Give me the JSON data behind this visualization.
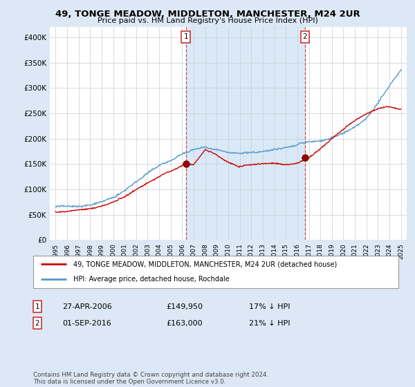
{
  "title": "49, TONGE MEADOW, MIDDLETON, MANCHESTER, M24 2UR",
  "subtitle": "Price paid vs. HM Land Registry's House Price Index (HPI)",
  "ylim": [
    0,
    420000
  ],
  "yticks": [
    0,
    50000,
    100000,
    150000,
    200000,
    250000,
    300000,
    350000,
    400000
  ],
  "ytick_labels": [
    "£0",
    "£50K",
    "£100K",
    "£150K",
    "£200K",
    "£250K",
    "£300K",
    "£350K",
    "£400K"
  ],
  "background_color": "#dce8f5",
  "plot_background": "#ffffff",
  "hpi_color": "#5599cc",
  "sale_color": "#cc0000",
  "vline_color": "#cc3333",
  "shade_color": "#d0e4f5",
  "marker1_x": 11.33,
  "marker1_year": "27-APR-2006",
  "marker1_price": 149950,
  "marker1_pct": "17% ↓ HPI",
  "marker2_x": 21.67,
  "marker2_year": "01-SEP-2016",
  "marker2_price": 163000,
  "marker2_pct": "21% ↓ HPI",
  "legend_line1": "49, TONGE MEADOW, MIDDLETON, MANCHESTER, M24 2UR (detached house)",
  "legend_line2": "HPI: Average price, detached house, Rochdale",
  "footnote": "Contains HM Land Registry data © Crown copyright and database right 2024.\nThis data is licensed under the Open Government Licence v3.0.",
  "x_start_year": 1995,
  "x_end_year": 2025,
  "hpi_base": [
    65000,
    67000,
    69000,
    72000,
    78000,
    87000,
    100000,
    118000,
    135000,
    148000,
    158000,
    168000,
    178000,
    182000,
    178000,
    172000,
    168000,
    170000,
    172000,
    175000,
    178000,
    183000,
    188000,
    192000,
    198000,
    207000,
    220000,
    240000,
    270000,
    305000,
    335000
  ],
  "sale_base": [
    55000,
    57000,
    59000,
    62000,
    67000,
    75000,
    86000,
    100000,
    115000,
    128000,
    138000,
    148000,
    149950,
    178000,
    168000,
    152000,
    143000,
    148000,
    150000,
    152000,
    150000,
    153000,
    163000,
    180000,
    200000,
    218000,
    235000,
    248000,
    258000,
    262000,
    258000
  ]
}
